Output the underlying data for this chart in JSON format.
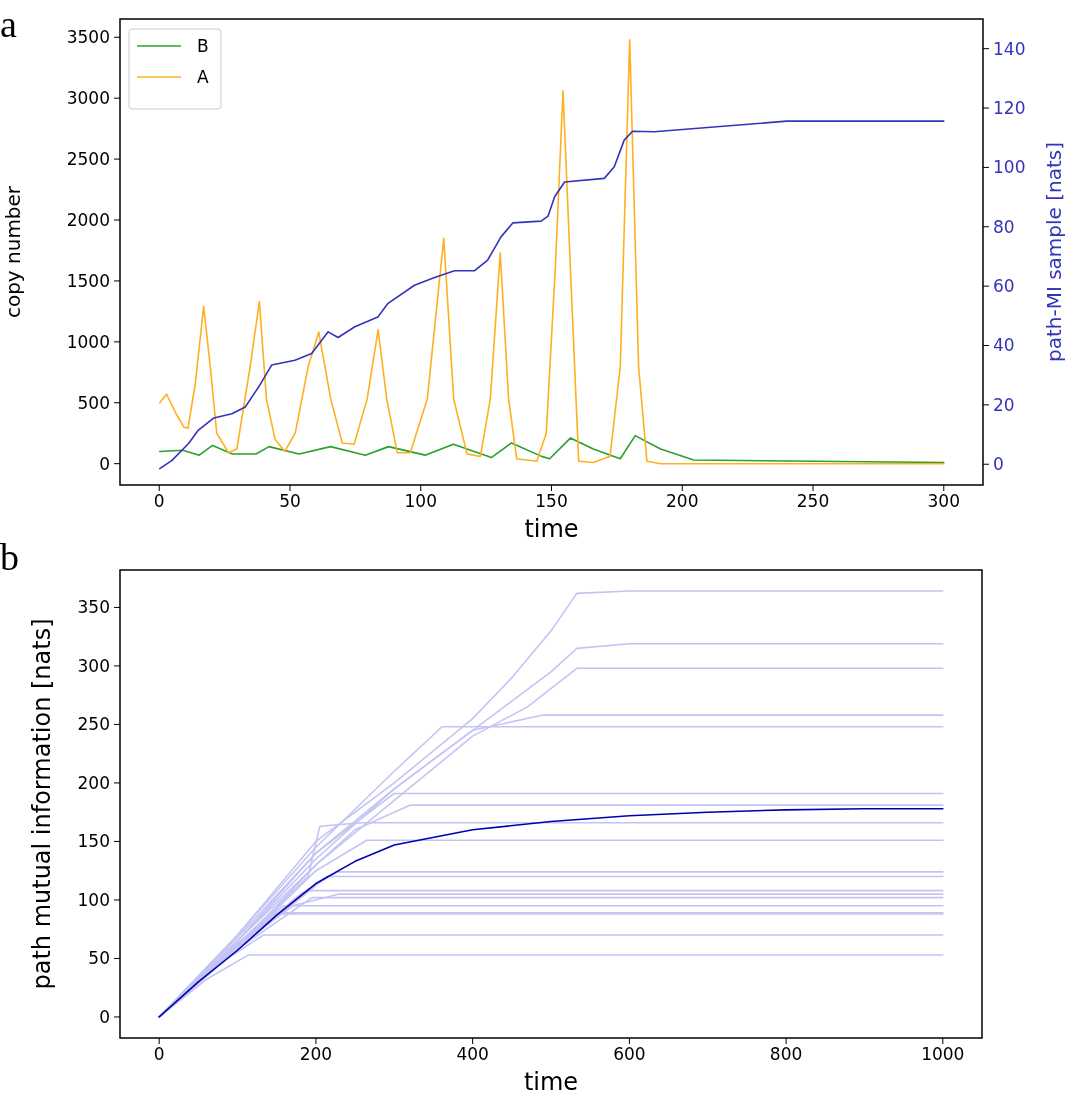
{
  "chart_data": [
    {
      "type": "line",
      "annotations": [
        "a"
      ],
      "xlabel": "time",
      "ylabel": "copy number",
      "y2label": "path-MI sample [nats]",
      "legend": "top left",
      "xlim": [
        -15,
        315
      ],
      "xticks": [
        0,
        50,
        100,
        150,
        200,
        250,
        300
      ],
      "ylim": [
        -175,
        3650
      ],
      "yticks": [
        0,
        500,
        1000,
        1500,
        2000,
        2500,
        3000,
        3500
      ],
      "y2lim": [
        -7,
        150
      ],
      "y2ticks": [
        0,
        20,
        40,
        60,
        80,
        100,
        120,
        140
      ],
      "series": [
        {
          "name": "B",
          "color": "#2ca02c",
          "x": [
            0.2,
            9,
            15.3,
            20.4,
            28,
            37,
            42,
            53.5,
            65.5,
            78.8,
            87.7,
            101.7,
            112.5,
            127,
            134.7,
            146.2,
            149.3,
            157.2,
            166,
            176.3,
            182,
            191.7,
            204.4,
            300
          ],
          "values": [
            100,
            110,
            70,
            150,
            80,
            80,
            140,
            80,
            140,
            70,
            140,
            70,
            160,
            50,
            170,
            60,
            40,
            210,
            120,
            40,
            230,
            120,
            30,
            10
          ]
        },
        {
          "name": "A",
          "color": "#ffb020",
          "x": [
            0.2,
            2.8,
            6.2,
            9.4,
            11,
            13.8,
            17,
            19.5,
            22,
            26.5,
            29.7,
            34.8,
            38.3,
            41,
            44.3,
            48,
            52,
            57,
            61,
            65.6,
            70,
            74.5,
            79.5,
            83.7,
            87,
            91,
            96,
            102.5,
            108.8,
            112.6,
            117.7,
            122.8,
            126.6,
            130.4,
            133.6,
            136.7,
            144.4,
            148,
            151.5,
            154.4,
            157.2,
            160.4,
            166,
            172.4,
            176.3,
            179.9,
            183.3,
            186.5,
            191.7,
            300
          ],
          "values": [
            500,
            570,
            420,
            300,
            290,
            660,
            1290,
            800,
            250,
            90,
            120,
            800,
            1330,
            530,
            200,
            100,
            250,
            800,
            1080,
            530,
            170,
            160,
            530,
            1100,
            530,
            90,
            90,
            530,
            1850,
            530,
            80,
            60,
            530,
            1730,
            530,
            40,
            20,
            250,
            1620,
            3060,
            1620,
            20,
            10,
            60,
            800,
            3480,
            800,
            20,
            0,
            0
          ]
        },
        {
          "color": "#3333bb",
          "axis": "y2",
          "x": [
            0.2,
            4.9,
            11.2,
            15,
            20.9,
            27.8,
            32.9,
            38,
            43,
            51.9,
            58.3,
            64.6,
            68.4,
            74.8,
            83.6,
            87.5,
            97.6,
            105.3,
            112.9,
            120.6,
            125.6,
            130.7,
            135.2,
            146,
            148.7,
            151.2,
            155,
            170.2,
            174,
            177.8,
            181,
            189.3,
            240,
            300
          ],
          "values": [
            -1.5,
            1.3,
            7,
            11.5,
            15.6,
            17,
            19.3,
            26,
            33.4,
            35,
            37.3,
            44.6,
            42.7,
            46.3,
            49.6,
            54.2,
            60.3,
            62.9,
            65.2,
            65.2,
            68.8,
            76.6,
            81.3,
            81.9,
            83.6,
            90.1,
            95.1,
            96.3,
            100.2,
            109.2,
            112.2,
            112,
            115.6,
            115.6
          ]
        }
      ]
    },
    {
      "type": "line",
      "annotations": [
        "b"
      ],
      "xlabel": "time",
      "ylabel": "path mutual information [nats]",
      "xlim": [
        -50,
        1050
      ],
      "xticks": [
        0,
        200,
        400,
        600,
        800,
        1000
      ],
      "ylim": [
        -18,
        382
      ],
      "yticks": [
        0,
        50,
        100,
        150,
        200,
        250,
        300,
        350
      ],
      "series": [
        {
          "color": "#c4c4f4",
          "x": [
            0,
            100,
            200,
            300,
            400,
            450,
            500,
            533,
            600,
            1000
          ],
          "values": [
            0,
            70,
            150,
            200,
            255,
            290,
            330,
            362,
            364,
            364
          ]
        },
        {
          "color": "#c4c4f4",
          "x": [
            0,
            100,
            200,
            300,
            400,
            450,
            500,
            533,
            600,
            1000
          ],
          "values": [
            0,
            65,
            135,
            195,
            245,
            270,
            295,
            315,
            319,
            319
          ]
        },
        {
          "color": "#c4c4f4",
          "x": [
            0,
            100,
            200,
            300,
            400,
            470,
            533,
            1000
          ],
          "values": [
            0,
            60,
            130,
            185,
            240,
            265,
            298,
            298
          ]
        },
        {
          "color": "#c4c4f4",
          "x": [
            0,
            100,
            200,
            300,
            400,
            490,
            1000
          ],
          "values": [
            0,
            65,
            140,
            195,
            245,
            258,
            258
          ]
        },
        {
          "color": "#c4c4f4",
          "x": [
            0,
            100,
            200,
            300,
            361,
            1000
          ],
          "values": [
            0,
            70,
            145,
            210,
            248,
            248
          ]
        },
        {
          "color": "#c4c4f4",
          "x": [
            0,
            100,
            200,
            300,
            1000
          ],
          "values": [
            0,
            68,
            140,
            191,
            191
          ]
        },
        {
          "color": "#c4c4f4",
          "x": [
            0,
            100,
            200,
            250,
            320,
            1000
          ],
          "values": [
            0,
            65,
            130,
            160,
            181,
            181
          ]
        },
        {
          "color": "#c4c4f4",
          "x": [
            0,
            100,
            190,
            205,
            258,
            1000
          ],
          "values": [
            0,
            62,
            120,
            163,
            166,
            166
          ]
        },
        {
          "color": "#c4c4f4",
          "x": [
            0,
            100,
            200,
            265,
            1000
          ],
          "values": [
            0,
            60,
            125,
            151,
            151
          ]
        },
        {
          "color": "#c4c4f4",
          "x": [
            0,
            100,
            180,
            227,
            1000
          ],
          "values": [
            0,
            60,
            105,
            124,
            124
          ]
        },
        {
          "color": "#c4c4f4",
          "x": [
            0,
            100,
            214,
            1000
          ],
          "values": [
            0,
            58,
            120,
            120
          ]
        },
        {
          "color": "#c4c4f4",
          "x": [
            0,
            100,
            189,
            1000
          ],
          "values": [
            0,
            62,
            108,
            108
          ]
        },
        {
          "color": "#c4c4f4",
          "x": [
            0,
            100,
            170,
            230,
            1000
          ],
          "values": [
            0,
            60,
            95,
            105,
            105
          ]
        },
        {
          "color": "#c4c4f4",
          "x": [
            0,
            100,
            195,
            1000
          ],
          "values": [
            0,
            58,
            102,
            102
          ]
        },
        {
          "color": "#c4c4f4",
          "x": [
            0,
            80,
            158,
            1000
          ],
          "values": [
            0,
            52,
            95,
            95
          ]
        },
        {
          "color": "#c4c4f4",
          "x": [
            0,
            80,
            150,
            1000
          ],
          "values": [
            0,
            50,
            89,
            89
          ]
        },
        {
          "color": "#c4c4f4",
          "x": [
            0,
            70,
            150,
            1000
          ],
          "values": [
            0,
            45,
            88,
            88
          ]
        },
        {
          "color": "#c4c4f4",
          "x": [
            0,
            60,
            133,
            1000
          ],
          "values": [
            0,
            38,
            70,
            70
          ]
        },
        {
          "color": "#c4c4f4",
          "x": [
            0,
            60,
            114,
            1000
          ],
          "values": [
            0,
            32,
            53,
            53
          ]
        },
        {
          "color": "#0000b0",
          "x": [
            0,
            50,
            100,
            150,
            200,
            250,
            300,
            400,
            500,
            600,
            700,
            800,
            900,
            1000
          ],
          "values": [
            0,
            30,
            57,
            87,
            114,
            133,
            147,
            160,
            167,
            172,
            175,
            177,
            178,
            178
          ]
        }
      ]
    }
  ]
}
